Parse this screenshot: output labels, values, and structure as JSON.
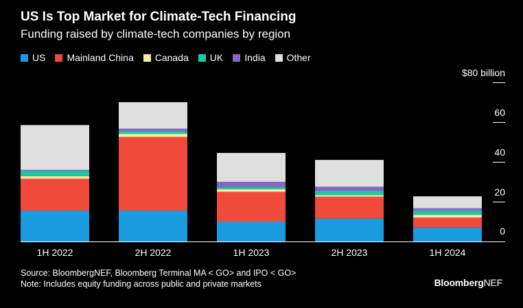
{
  "header": {
    "title": "US Is Top Market for Climate-Tech Financing",
    "subtitle": "Funding raised by climate-tech companies by region"
  },
  "colors": {
    "US": "#1a9be0",
    "Mainland China": "#f04a3b",
    "Canada": "#fbe9a6",
    "UK": "#1ec8a5",
    "India": "#8e63c7",
    "Other": "#dedede",
    "axis": "#ffffff"
  },
  "chart_data": {
    "type": "bar",
    "stacked": true,
    "categories": [
      "1H 2022",
      "2H 2022",
      "1H 2023",
      "2H 2023",
      "1H 2024"
    ],
    "series": [
      {
        "name": "US",
        "values": [
          15.5,
          15.5,
          10,
          11.5,
          7
        ]
      },
      {
        "name": "Mainland China",
        "values": [
          16,
          37,
          15,
          11,
          5
        ]
      },
      {
        "name": "Canada",
        "values": [
          1.3,
          1.6,
          1.2,
          0.8,
          1.4
        ]
      },
      {
        "name": "UK",
        "values": [
          2.7,
          1.4,
          1.3,
          2.2,
          2.1
        ]
      },
      {
        "name": "India",
        "values": [
          0.5,
          1.2,
          2.5,
          2,
          1.2
        ]
      },
      {
        "name": "Other",
        "values": [
          22.5,
          13.3,
          14.5,
          13.5,
          6
        ]
      }
    ],
    "ylim": [
      0,
      80
    ],
    "yticks": [
      {
        "value": 0,
        "label": "0"
      },
      {
        "value": 20,
        "label": "20"
      },
      {
        "value": 40,
        "label": "40"
      },
      {
        "value": 60,
        "label": "60"
      },
      {
        "value": 80,
        "label": "$80 billion"
      }
    ],
    "legend_position": "top-left",
    "grid": false
  },
  "footer": {
    "source": "Source: BloombergNEF, Bloomberg Terminal MA < GO> and IPO < GO>",
    "note": "Note: Includes equity funding across public and private markets",
    "brand_bold": "Bloomberg",
    "brand_regular": "NEF"
  }
}
